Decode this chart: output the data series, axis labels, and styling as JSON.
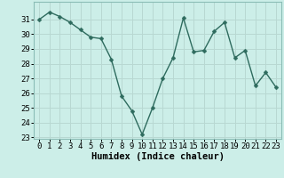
{
  "x": [
    0,
    1,
    2,
    3,
    4,
    5,
    6,
    7,
    8,
    9,
    10,
    11,
    12,
    13,
    14,
    15,
    16,
    17,
    18,
    19,
    20,
    21,
    22,
    23
  ],
  "y": [
    31.0,
    31.5,
    31.2,
    30.8,
    30.3,
    29.8,
    29.7,
    28.3,
    25.8,
    24.8,
    23.2,
    25.0,
    27.0,
    28.4,
    31.1,
    28.8,
    28.9,
    30.2,
    30.8,
    28.4,
    28.9,
    26.5,
    27.4,
    26.4
  ],
  "line_color": "#2e6b5e",
  "marker_color": "#2e6b5e",
  "bg_color": "#cceee8",
  "grid_color": "#b8d8d2",
  "xlabel": "Humidex (Indice chaleur)",
  "ylim_min": 23,
  "ylim_max": 32,
  "xlim_min": -0.5,
  "xlim_max": 23.5,
  "yticks": [
    23,
    24,
    25,
    26,
    27,
    28,
    29,
    30,
    31
  ],
  "xticks": [
    0,
    1,
    2,
    3,
    4,
    5,
    6,
    7,
    8,
    9,
    10,
    11,
    12,
    13,
    14,
    15,
    16,
    17,
    18,
    19,
    20,
    21,
    22,
    23
  ],
  "xlabel_fontsize": 7.5,
  "tick_fontsize": 6.5,
  "linewidth": 1.0,
  "markersize": 2.5,
  "spine_color": "#8bbdb6"
}
